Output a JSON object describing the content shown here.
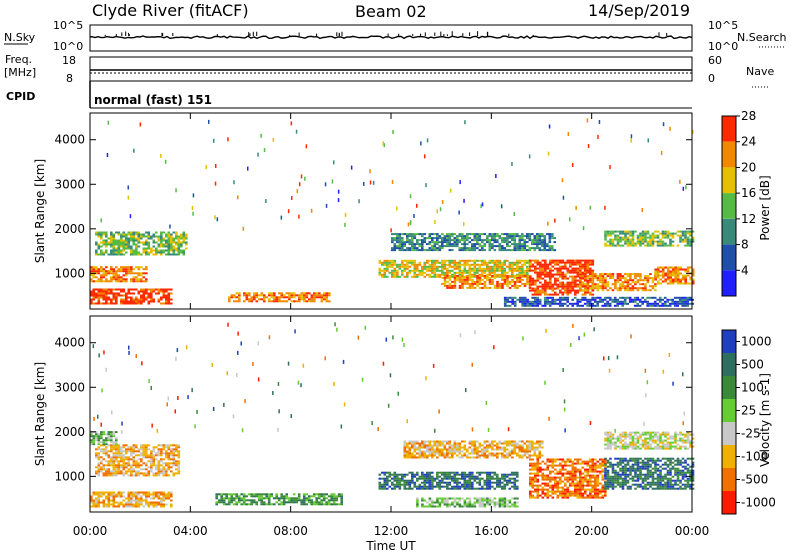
{
  "header": {
    "title": "Clyde River (fitACF)",
    "beam": "Beam 02",
    "date": "14/Sep/2019"
  },
  "top_panels": {
    "nsky_label": "N.Sky",
    "nsky_ticks": [
      "10^5",
      "10^0"
    ],
    "nsearch_label": "N.Search",
    "nsearch_ticks": [
      "10^5",
      "10^0"
    ],
    "freq_label_1": "Freq.",
    "freq_label_2": "[MHz]",
    "freq_ticks": [
      "18",
      "8"
    ],
    "nave_label": "Nave",
    "nave_ticks": [
      "60",
      "0"
    ],
    "cpid_label": "CPID",
    "cpid_text": "normal (fast) 151"
  },
  "chart_data": [
    {
      "type": "heatmap",
      "parameter": "power",
      "ylabel": "Slant Range [km]",
      "xlabel": "",
      "yticks": [
        "1000",
        "2000",
        "3000",
        "4000"
      ],
      "yvalues": [
        1000,
        2000,
        3000,
        4000
      ],
      "ylim": [
        200,
        4600
      ],
      "colorbar": {
        "label": "Power [dB]",
        "ticks": [
          "4",
          "8",
          "12",
          "16",
          "20",
          "24",
          "28"
        ],
        "colors": [
          "#1f1fff",
          "#1f4fa8",
          "#3a8a7a",
          "#55bb44",
          "#e5c000",
          "#f08800",
          "#ff2a00"
        ]
      },
      "bands": [
        {
          "start": 0.0,
          "end": 3.2,
          "low": 300,
          "high": 650,
          "level": 6
        },
        {
          "start": 0.0,
          "end": 2.2,
          "low": 800,
          "high": 1150,
          "level": 5
        },
        {
          "start": 0.2,
          "end": 3.8,
          "low": 1400,
          "high": 1900,
          "level": 3
        },
        {
          "start": 5.5,
          "end": 9.5,
          "low": 350,
          "high": 550,
          "level": 5
        },
        {
          "start": 11.5,
          "end": 17.5,
          "low": 900,
          "high": 1300,
          "level": 4
        },
        {
          "start": 12.0,
          "end": 18.5,
          "low": 1500,
          "high": 1900,
          "level": 2
        },
        {
          "start": 14.0,
          "end": 17.5,
          "low": 650,
          "high": 950,
          "level": 5
        },
        {
          "start": 17.5,
          "end": 20.0,
          "low": 500,
          "high": 1300,
          "level": 6
        },
        {
          "start": 19.5,
          "end": 22.5,
          "low": 600,
          "high": 1000,
          "level": 5
        },
        {
          "start": 20.5,
          "end": 24.0,
          "low": 1600,
          "high": 1950,
          "level": 3
        },
        {
          "start": 22.5,
          "end": 24.0,
          "low": 750,
          "high": 1150,
          "level": 5
        },
        {
          "start": 16.5,
          "end": 24.0,
          "low": 250,
          "high": 450,
          "level": 1
        }
      ]
    },
    {
      "type": "heatmap",
      "parameter": "velocity",
      "ylabel": "Slant Range [km]",
      "xlabel": "Time UT",
      "yticks": [
        "1000",
        "2000",
        "3000",
        "4000"
      ],
      "yvalues": [
        1000,
        2000,
        3000,
        4000
      ],
      "ylim": [
        200,
        4600
      ],
      "xticks": [
        "00:00",
        "04:00",
        "08:00",
        "12:00",
        "16:00",
        "20:00",
        "00:00"
      ],
      "xvalues": [
        0,
        4,
        8,
        12,
        16,
        20,
        24
      ],
      "colorbar": {
        "label": "Velocity [m s-1]",
        "ticks": [
          "1000",
          "500",
          "100",
          "25",
          "-25",
          "-100",
          "-500",
          "-1000"
        ],
        "colors": [
          "#1f3fbf",
          "#2f6f5f",
          "#3a8a3a",
          "#66cc33",
          "#c8c8c8",
          "#f0b000",
          "#f07000",
          "#ff1a00"
        ]
      },
      "bands": [
        {
          "start": 0.0,
          "end": 3.2,
          "low": 300,
          "high": 650,
          "level": 5
        },
        {
          "start": 0.2,
          "end": 3.5,
          "low": 1000,
          "high": 1700,
          "level": 5
        },
        {
          "start": 0.0,
          "end": 1.0,
          "low": 1700,
          "high": 2000,
          "level": 3
        },
        {
          "start": 5.0,
          "end": 10.0,
          "low": 350,
          "high": 600,
          "level": 2
        },
        {
          "start": 11.5,
          "end": 17.0,
          "low": 700,
          "high": 1100,
          "level": 1
        },
        {
          "start": 12.5,
          "end": 18.0,
          "low": 1400,
          "high": 1800,
          "level": 5
        },
        {
          "start": 17.5,
          "end": 20.5,
          "low": 500,
          "high": 1400,
          "level": 6
        },
        {
          "start": 20.5,
          "end": 24.0,
          "low": 700,
          "high": 1400,
          "level": 1
        },
        {
          "start": 20.5,
          "end": 24.0,
          "low": 1600,
          "high": 2000,
          "level": 4
        },
        {
          "start": 13.0,
          "end": 17.0,
          "low": 300,
          "high": 500,
          "level": 3
        }
      ]
    }
  ]
}
